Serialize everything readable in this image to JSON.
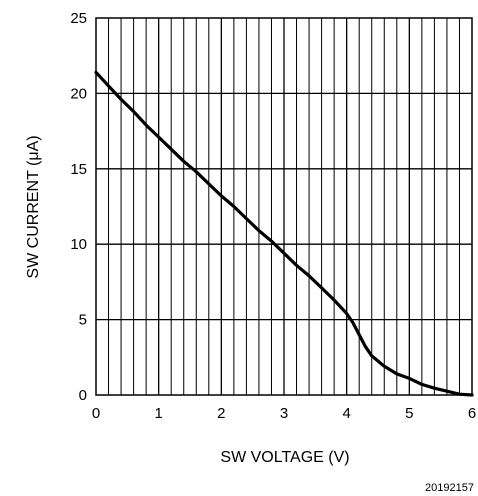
{
  "chart_data": {
    "type": "line",
    "title": "",
    "xlabel": "SW VOLTAGE (V)",
    "ylabel": "SW CURRENT (μA)",
    "xlim": [
      0,
      6
    ],
    "ylim": [
      0,
      25
    ],
    "x_ticks": [
      "0",
      "1",
      "2",
      "3",
      "4",
      "5",
      "6"
    ],
    "y_ticks": [
      "0",
      "5",
      "10",
      "15",
      "20",
      "25"
    ],
    "grid": true,
    "x_minor_divisions": 5,
    "series": [
      {
        "values": [
          {
            "x": 0.0,
            "y": 21.4
          },
          {
            "x": 0.2,
            "y": 20.5
          },
          {
            "x": 0.4,
            "y": 19.6
          },
          {
            "x": 0.6,
            "y": 18.8
          },
          {
            "x": 0.8,
            "y": 17.9
          },
          {
            "x": 1.0,
            "y": 17.1
          },
          {
            "x": 1.2,
            "y": 16.3
          },
          {
            "x": 1.4,
            "y": 15.5
          },
          {
            "x": 1.6,
            "y": 14.8
          },
          {
            "x": 1.8,
            "y": 14.0
          },
          {
            "x": 2.0,
            "y": 13.2
          },
          {
            "x": 2.2,
            "y": 12.5
          },
          {
            "x": 2.4,
            "y": 11.7
          },
          {
            "x": 2.6,
            "y": 10.9
          },
          {
            "x": 2.8,
            "y": 10.2
          },
          {
            "x": 3.0,
            "y": 9.4
          },
          {
            "x": 3.2,
            "y": 8.6
          },
          {
            "x": 3.4,
            "y": 7.9
          },
          {
            "x": 3.6,
            "y": 7.1
          },
          {
            "x": 3.8,
            "y": 6.3
          },
          {
            "x": 4.0,
            "y": 5.4
          },
          {
            "x": 4.1,
            "y": 4.8
          },
          {
            "x": 4.2,
            "y": 4.0
          },
          {
            "x": 4.3,
            "y": 3.2
          },
          {
            "x": 4.4,
            "y": 2.6
          },
          {
            "x": 4.6,
            "y": 1.9
          },
          {
            "x": 4.8,
            "y": 1.4
          },
          {
            "x": 5.0,
            "y": 1.1
          },
          {
            "x": 5.2,
            "y": 0.7
          },
          {
            "x": 5.4,
            "y": 0.45
          },
          {
            "x": 5.6,
            "y": 0.25
          },
          {
            "x": 5.8,
            "y": 0.05
          },
          {
            "x": 6.0,
            "y": 0.0
          }
        ]
      }
    ]
  },
  "figure_id": "20192157"
}
